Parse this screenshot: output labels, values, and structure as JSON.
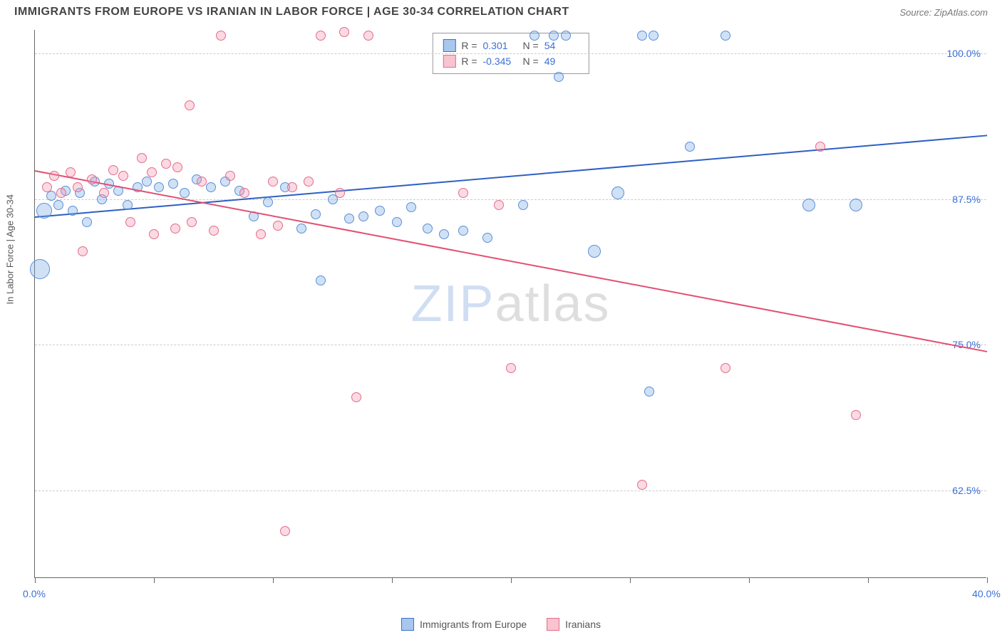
{
  "header": {
    "title": "IMMIGRANTS FROM EUROPE VS IRANIAN IN LABOR FORCE | AGE 30-34 CORRELATION CHART",
    "source": "Source: ZipAtlas.com"
  },
  "chart": {
    "type": "scatter",
    "ylabel": "In Labor Force | Age 30-34",
    "xlim": [
      0,
      40
    ],
    "ylim": [
      55,
      102
    ],
    "x_ticks": [
      0,
      5,
      10,
      15,
      20,
      25,
      30,
      35,
      40
    ],
    "x_tick_labels": {
      "0": "0.0%",
      "40": "40.0%"
    },
    "y_gridlines": [
      62.5,
      75.0,
      87.5,
      100.0
    ],
    "y_tick_labels": [
      "62.5%",
      "75.0%",
      "87.5%",
      "100.0%"
    ],
    "background_color": "#ffffff",
    "grid_color": "#cccccc",
    "axis_color": "#666666",
    "tick_label_color": "#3b6fd6",
    "watermark": {
      "text_prefix": "ZIP",
      "text_suffix": "atlas",
      "prefix_color": "rgba(120,160,220,0.35)",
      "suffix_color": "rgba(160,160,160,0.35)"
    },
    "legend_top": {
      "rows": [
        {
          "r_label": "R =",
          "r_value": "0.301",
          "n_label": "N =",
          "n_value": "54",
          "fill": "#a8c7ec",
          "stroke": "#3b6fd6"
        },
        {
          "r_label": "R =",
          "r_value": "-0.345",
          "n_label": "N =",
          "n_value": "49",
          "fill": "#f7c4d0",
          "stroke": "#e86a8a"
        }
      ]
    },
    "legend_bottom": {
      "items": [
        {
          "label": "Immigrants from Europe",
          "fill": "#a8c7ec",
          "stroke": "#3b6fd6"
        },
        {
          "label": "Iranians",
          "fill": "#f7c4d0",
          "stroke": "#e86a8a"
        }
      ]
    },
    "series": [
      {
        "name": "Immigrants from Europe",
        "fill": "rgba(120,170,230,0.35)",
        "stroke": "#5a8fd6",
        "marker_radius": 7,
        "trend": {
          "x1": 0,
          "y1": 86.0,
          "x2": 40,
          "y2": 93.0,
          "color": "#2e5fc4",
          "width": 2
        },
        "points": [
          {
            "x": 0.2,
            "y": 81.5,
            "r": 14
          },
          {
            "x": 0.4,
            "y": 86.5,
            "r": 11
          },
          {
            "x": 0.7,
            "y": 87.8
          },
          {
            "x": 1.0,
            "y": 87.0
          },
          {
            "x": 1.3,
            "y": 88.2
          },
          {
            "x": 1.6,
            "y": 86.5
          },
          {
            "x": 1.9,
            "y": 88.0
          },
          {
            "x": 2.2,
            "y": 85.5
          },
          {
            "x": 2.5,
            "y": 89.0
          },
          {
            "x": 2.8,
            "y": 87.5
          },
          {
            "x": 3.1,
            "y": 88.8
          },
          {
            "x": 3.5,
            "y": 88.2
          },
          {
            "x": 3.9,
            "y": 87.0
          },
          {
            "x": 4.3,
            "y": 88.5
          },
          {
            "x": 4.7,
            "y": 89.0
          },
          {
            "x": 5.2,
            "y": 88.5
          },
          {
            "x": 5.8,
            "y": 88.8
          },
          {
            "x": 6.3,
            "y": 88.0
          },
          {
            "x": 6.8,
            "y": 89.2
          },
          {
            "x": 7.4,
            "y": 88.5
          },
          {
            "x": 8.0,
            "y": 89.0
          },
          {
            "x": 8.6,
            "y": 88.2
          },
          {
            "x": 9.2,
            "y": 86.0
          },
          {
            "x": 9.8,
            "y": 87.2
          },
          {
            "x": 10.5,
            "y": 88.5
          },
          {
            "x": 11.2,
            "y": 85.0
          },
          {
            "x": 11.8,
            "y": 86.2
          },
          {
            "x": 12.5,
            "y": 87.5
          },
          {
            "x": 13.2,
            "y": 85.8
          },
          {
            "x": 12.0,
            "y": 80.5
          },
          {
            "x": 13.8,
            "y": 86.0
          },
          {
            "x": 14.5,
            "y": 86.5
          },
          {
            "x": 15.2,
            "y": 85.5
          },
          {
            "x": 15.8,
            "y": 86.8
          },
          {
            "x": 16.5,
            "y": 85.0
          },
          {
            "x": 17.2,
            "y": 84.5
          },
          {
            "x": 18.0,
            "y": 84.8
          },
          {
            "x": 19.0,
            "y": 84.2
          },
          {
            "x": 20.5,
            "y": 87.0
          },
          {
            "x": 21.0,
            "y": 101.5
          },
          {
            "x": 21.8,
            "y": 101.5
          },
          {
            "x": 22.3,
            "y": 101.5
          },
          {
            "x": 22.0,
            "y": 98.0
          },
          {
            "x": 23.5,
            "y": 83.0,
            "r": 9
          },
          {
            "x": 24.5,
            "y": 88.0,
            "r": 9
          },
          {
            "x": 25.5,
            "y": 101.5
          },
          {
            "x": 26.0,
            "y": 101.5
          },
          {
            "x": 27.5,
            "y": 92.0
          },
          {
            "x": 25.8,
            "y": 71.0
          },
          {
            "x": 29.0,
            "y": 101.5
          },
          {
            "x": 32.5,
            "y": 87.0,
            "r": 9
          },
          {
            "x": 34.5,
            "y": 87.0,
            "r": 9
          }
        ]
      },
      {
        "name": "Iranians",
        "fill": "rgba(240,150,175,0.35)",
        "stroke": "#e86a8a",
        "marker_radius": 7,
        "trend": {
          "x1": 0,
          "y1": 90.0,
          "x2": 40,
          "y2": 74.5,
          "color": "#e24f73",
          "width": 2
        },
        "points": [
          {
            "x": 0.5,
            "y": 88.5
          },
          {
            "x": 0.8,
            "y": 89.5
          },
          {
            "x": 1.1,
            "y": 88.0
          },
          {
            "x": 1.5,
            "y": 89.8
          },
          {
            "x": 1.8,
            "y": 88.5
          },
          {
            "x": 2.0,
            "y": 83.0
          },
          {
            "x": 2.4,
            "y": 89.2
          },
          {
            "x": 2.9,
            "y": 88.0
          },
          {
            "x": 3.3,
            "y": 90.0
          },
          {
            "x": 3.7,
            "y": 89.5
          },
          {
            "x": 4.0,
            "y": 85.5
          },
          {
            "x": 4.5,
            "y": 91.0
          },
          {
            "x": 4.9,
            "y": 89.8
          },
          {
            "x": 5.0,
            "y": 84.5
          },
          {
            "x": 5.5,
            "y": 90.5
          },
          {
            "x": 5.9,
            "y": 85.0
          },
          {
            "x": 6.0,
            "y": 90.2
          },
          {
            "x": 6.5,
            "y": 95.5
          },
          {
            "x": 6.6,
            "y": 85.5
          },
          {
            "x": 7.0,
            "y": 89.0
          },
          {
            "x": 7.5,
            "y": 84.8
          },
          {
            "x": 7.8,
            "y": 101.5
          },
          {
            "x": 8.2,
            "y": 89.5
          },
          {
            "x": 8.8,
            "y": 88.0
          },
          {
            "x": 9.5,
            "y": 84.5
          },
          {
            "x": 10.0,
            "y": 89.0
          },
          {
            "x": 10.2,
            "y": 85.2
          },
          {
            "x": 10.8,
            "y": 88.5
          },
          {
            "x": 11.5,
            "y": 89.0
          },
          {
            "x": 12.0,
            "y": 101.5
          },
          {
            "x": 12.8,
            "y": 88.0
          },
          {
            "x": 13.0,
            "y": 101.8
          },
          {
            "x": 14.0,
            "y": 101.5
          },
          {
            "x": 10.5,
            "y": 59.0
          },
          {
            "x": 13.5,
            "y": 70.5
          },
          {
            "x": 18.0,
            "y": 88.0
          },
          {
            "x": 19.5,
            "y": 87.0
          },
          {
            "x": 20.0,
            "y": 73.0
          },
          {
            "x": 25.5,
            "y": 63.0
          },
          {
            "x": 29.0,
            "y": 73.0
          },
          {
            "x": 33.0,
            "y": 92.0
          },
          {
            "x": 34.5,
            "y": 69.0
          }
        ]
      }
    ]
  }
}
